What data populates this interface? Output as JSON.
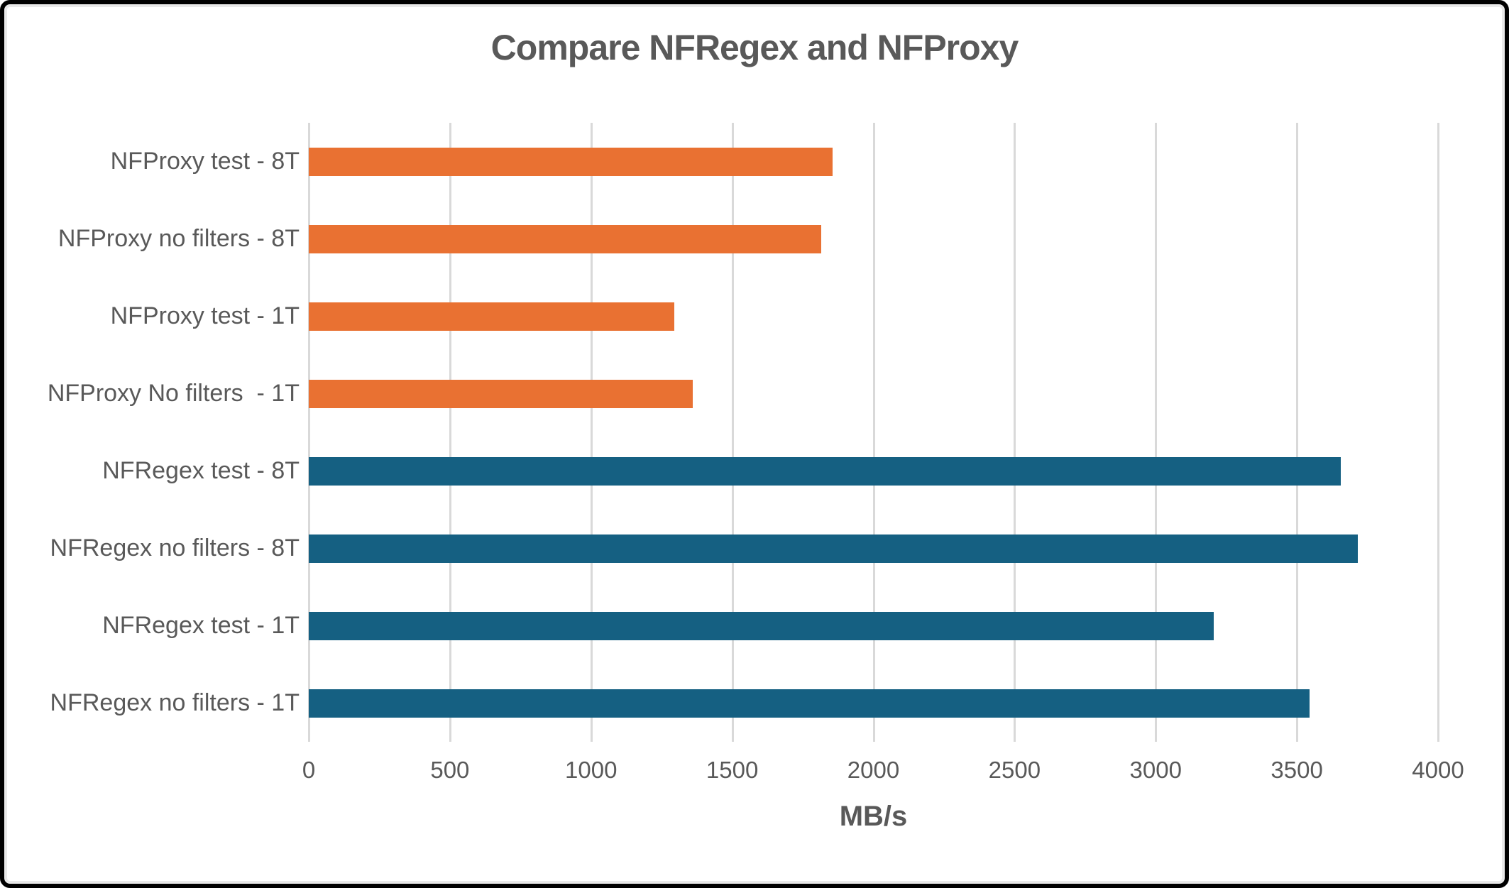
{
  "chart_data": {
    "type": "bar",
    "orientation": "horizontal",
    "title": "Compare NFRegex and NFProxy",
    "xlabel": "MB/s",
    "xlim": [
      0,
      4000
    ],
    "xticks": [
      0,
      500,
      1000,
      1500,
      2000,
      2500,
      3000,
      3500,
      4000
    ],
    "grid": true,
    "legend": false,
    "categories": [
      "NFProxy test - 8T",
      "NFProxy no filters - 8T",
      "NFProxy test - 1T",
      "NFProxy No filters  - 1T",
      "NFRegex test - 8T",
      "NFRegex no filters - 8T",
      "NFRegex test - 1T",
      "NFRegex no filters - 1T"
    ],
    "values": [
      1855,
      1815,
      1295,
      1360,
      3655,
      3715,
      3205,
      3545
    ],
    "bar_colors": [
      "#E97132",
      "#E97132",
      "#E97132",
      "#E97132",
      "#156082",
      "#156082",
      "#156082",
      "#156082"
    ],
    "series_colors": {
      "NFProxy": "#E97132",
      "NFRegex": "#156082"
    },
    "gridline_color": "#d9d9d9",
    "text_color": "#595959"
  }
}
